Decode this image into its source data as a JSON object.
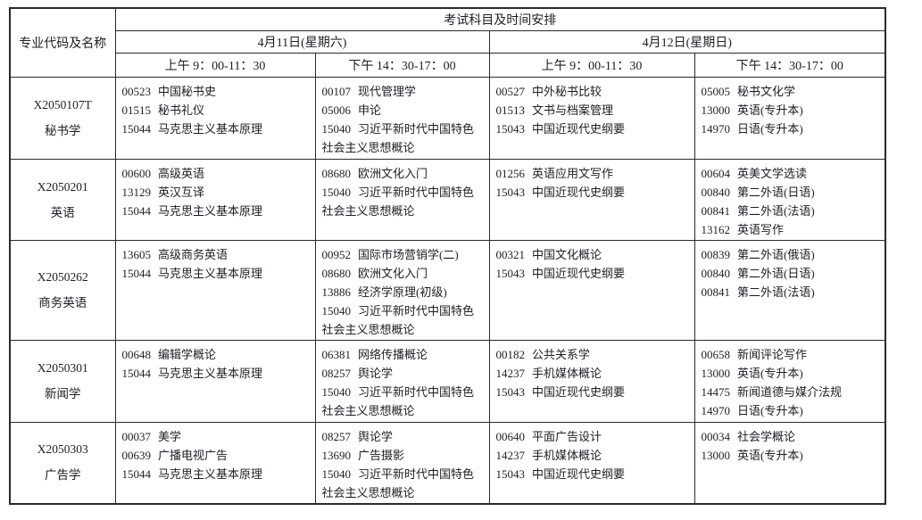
{
  "header": {
    "left_title": "专业代码及名称",
    "main_title": "考试科目及时间安排",
    "days": [
      {
        "date": "4月11日(星期六)",
        "sessions": [
          "上午 9：00-11：30",
          "下午 14：30-17：00"
        ]
      },
      {
        "date": "4月12日(星期日)",
        "sessions": [
          "上午 9：00-11：30",
          "下午 14：30-17：00"
        ]
      }
    ]
  },
  "rows": [
    {
      "code": "X2050107T",
      "major": "秘书学",
      "cells": [
        [
          "00523 中国秘书史",
          "01515 秘书礼仪",
          "15044 马克思主义基本原理"
        ],
        [
          "00107 现代管理学",
          "05006 申论",
          "15040 习近平新时代中国特色社会主义思想概论"
        ],
        [
          "00527 中外秘书比较",
          "01513 文书与档案管理",
          "15043 中国近现代史纲要"
        ],
        [
          "05005 秘书文化学",
          "13000 英语(专升本)",
          "14970 日语(专升本)"
        ]
      ]
    },
    {
      "code": "X2050201",
      "major": "英语",
      "cells": [
        [
          "00600 高级英语",
          "13129 英汉互译",
          "15044 马克思主义基本原理"
        ],
        [
          "08680 欧洲文化入门",
          "15040 习近平新时代中国特色社会主义思想概论"
        ],
        [
          "01256 英语应用文写作",
          "15043 中国近现代史纲要"
        ],
        [
          "00604 英美文学选读",
          "00840 第二外语(日语)",
          "00841 第二外语(法语)",
          "13162 英语写作"
        ]
      ]
    },
    {
      "code": "X2050262",
      "major": "商务英语",
      "cells": [
        [
          "13605 高级商务英语",
          "15044 马克思主义基本原理"
        ],
        [
          "00952 国际市场营销学(二)",
          "08680 欧洲文化入门",
          "13886 经济学原理(初级)",
          "15040 习近平新时代中国特色社会主义思想概论"
        ],
        [
          "00321 中国文化概论",
          "15043 中国近现代史纲要"
        ],
        [
          "00839 第二外语(俄语)",
          "00840 第二外语(日语)",
          "00841 第二外语(法语)"
        ]
      ]
    },
    {
      "code": "X2050301",
      "major": "新闻学",
      "cells": [
        [
          "00648 编辑学概论",
          "15044 马克思主义基本原理"
        ],
        [
          "06381 网络传播概论",
          "08257 舆论学",
          "15040 习近平新时代中国特色社会主义思想概论"
        ],
        [
          "00182 公共关系学",
          "14237 手机媒体概论",
          "15043 中国近现代史纲要"
        ],
        [
          "00658 新闻评论写作",
          "13000 英语(专升本)",
          "14475 新闻道德与媒介法规",
          "14970 日语(专升本)"
        ]
      ]
    },
    {
      "code": "X2050303",
      "major": "广告学",
      "cells": [
        [
          "00037 美学",
          "00639 广播电视广告",
          "15044 马克思主义基本原理"
        ],
        [
          "08257 舆论学",
          "13690 广告摄影",
          "15040 习近平新时代中国特色社会主义思想概论"
        ],
        [
          "00640 平面广告设计",
          "14237 手机媒体概论",
          "15043 中国近现代史纲要"
        ],
        [
          "00034 社会学概论",
          "13000 英语(专升本)"
        ]
      ]
    }
  ]
}
